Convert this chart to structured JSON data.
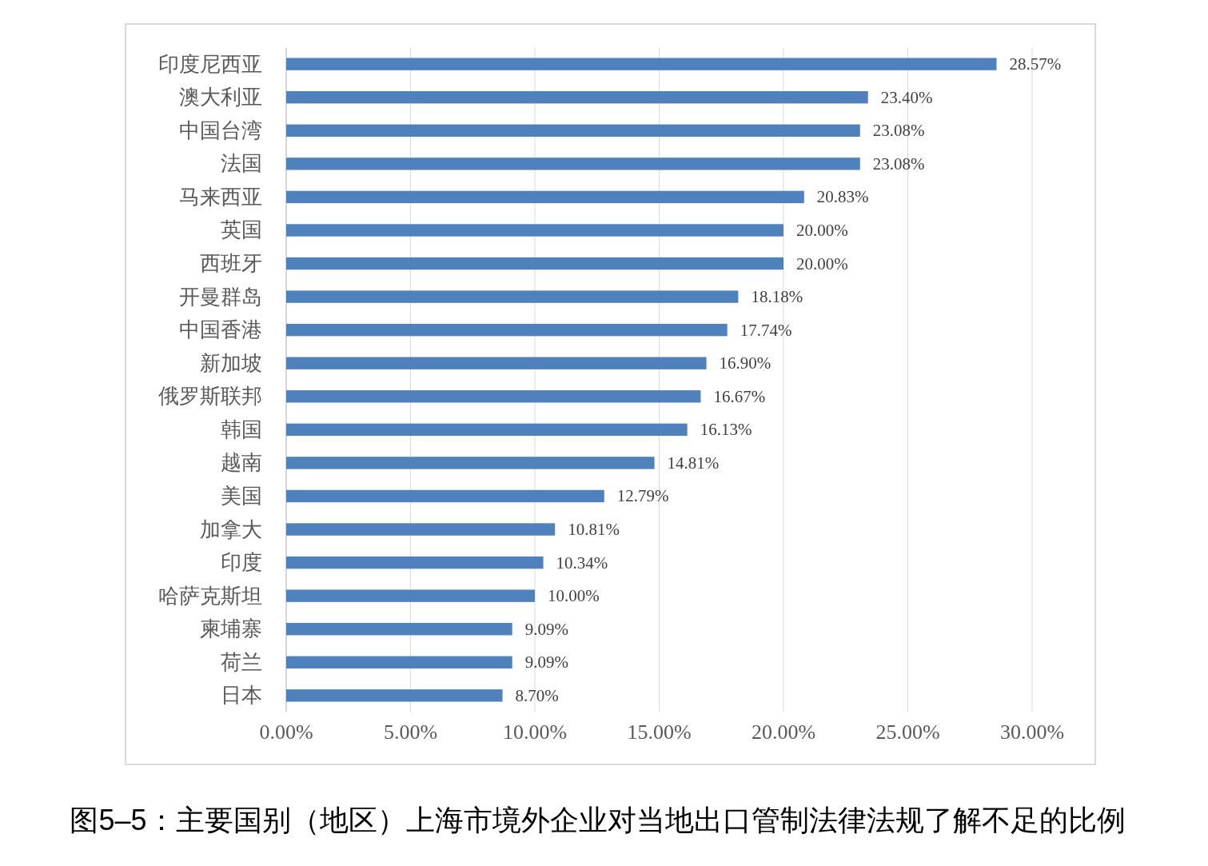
{
  "chart_data": {
    "type": "bar",
    "orientation": "horizontal",
    "categories": [
      "印度尼西亚",
      "澳大利亚",
      "中国台湾",
      "法国",
      "马来西亚",
      "英国",
      "西班牙",
      "开曼群岛",
      "中国香港",
      "新加坡",
      "俄罗斯联邦",
      "韩国",
      "越南",
      "美国",
      "加拿大",
      "印度",
      "哈萨克斯坦",
      "柬埔寨",
      "荷兰",
      "日本"
    ],
    "values": [
      28.57,
      23.4,
      23.08,
      23.08,
      20.83,
      20.0,
      20.0,
      18.18,
      17.74,
      16.9,
      16.67,
      16.13,
      14.81,
      12.79,
      10.81,
      10.34,
      10.0,
      9.09,
      9.09,
      8.7
    ],
    "value_labels": [
      "28.57%",
      "23.40%",
      "23.08%",
      "23.08%",
      "20.83%",
      "20.00%",
      "20.00%",
      "18.18%",
      "17.74%",
      "16.90%",
      "16.67%",
      "16.13%",
      "14.81%",
      "12.79%",
      "10.81%",
      "10.34%",
      "10.00%",
      "9.09%",
      "9.09%",
      "8.70%"
    ],
    "color": "#4f81bd",
    "xlim": [
      0,
      30
    ],
    "xticks": [
      {
        "value": 0,
        "label": "0.00%"
      },
      {
        "value": 5,
        "label": "5.00%"
      },
      {
        "value": 10,
        "label": "10.00%"
      },
      {
        "value": 15,
        "label": "15.00%"
      },
      {
        "value": 20,
        "label": "20.00%"
      },
      {
        "value": 25,
        "label": "25.00%"
      },
      {
        "value": 30,
        "label": "30.00%"
      }
    ],
    "grid": "x",
    "annotations": [
      "图5–5：主要国别（地区）上海市境外企业对当地出口管制法律法规了解不足的比例"
    ]
  }
}
